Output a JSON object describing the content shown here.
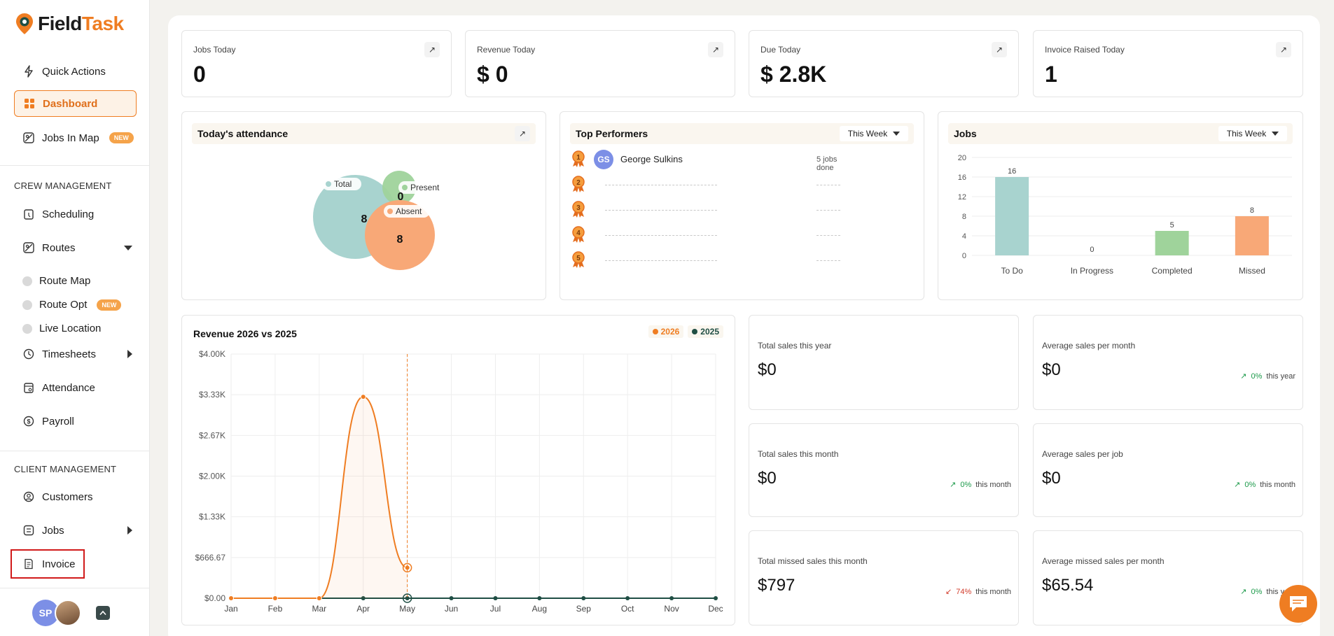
{
  "app": {
    "logo_part1": "Field",
    "logo_part2": "Task",
    "brand_color": "#ef7d22"
  },
  "sidebar": {
    "top_items": [
      {
        "label": "Quick Actions",
        "icon": "bolt-icon"
      },
      {
        "label": "Dashboard",
        "icon": "dashboard-icon",
        "active": true
      },
      {
        "label": "Jobs In Map",
        "icon": "map-icon",
        "badge": "NEW"
      }
    ],
    "crew_title": "CREW MANAGEMENT",
    "crew_items": [
      {
        "label": "Scheduling",
        "icon": "calendar-icon"
      },
      {
        "label": "Routes",
        "icon": "routes-icon",
        "expanded": true
      }
    ],
    "route_sub": [
      {
        "label": "Route Map"
      },
      {
        "label": "Route Opt",
        "badge": "NEW"
      },
      {
        "label": "Live Location"
      }
    ],
    "crew_items2": [
      {
        "label": "Timesheets",
        "icon": "clock-icon"
      },
      {
        "label": "Attendance",
        "icon": "attendance-icon"
      },
      {
        "label": "Payroll",
        "icon": "payroll-icon"
      }
    ],
    "client_title": "CLIENT MANAGEMENT",
    "client_items": [
      {
        "label": "Customers",
        "icon": "customers-icon"
      },
      {
        "label": "Jobs",
        "icon": "jobs-icon"
      },
      {
        "label": "Invoice",
        "icon": "invoice-icon"
      }
    ],
    "user_initials": "SP"
  },
  "stats": [
    {
      "label": "Jobs Today",
      "value": "0"
    },
    {
      "label": "Revenue Today",
      "value": "$ 0"
    },
    {
      "label": "Due Today",
      "value": "$ 2.8K"
    },
    {
      "label": "Invoice Raised Today",
      "value": "1"
    }
  ],
  "attendance": {
    "title": "Today's attendance",
    "total_label": "Total",
    "present_label": "Present",
    "absent_label": "Absent",
    "total_value": "8",
    "present_value": "0",
    "absent_value": "8",
    "colors": {
      "total": "#a8d3cf",
      "present": "#9fd39b",
      "absent": "#f8a877"
    }
  },
  "performers": {
    "title": "Top Performers",
    "filter": "This Week",
    "top": {
      "initials": "GS",
      "name": "George Sulkins",
      "jobs": "5 jobs done"
    },
    "ranks": [
      "1",
      "2",
      "3",
      "4",
      "5"
    ]
  },
  "jobs_chart": {
    "title": "Jobs",
    "filter": "This Week"
  },
  "revenue": {
    "title": "Revenue 2026 vs 2025",
    "legend_2026": "2026",
    "legend_2025": "2025",
    "color_2026": "#ef7d22",
    "color_2025": "#1f4e44"
  },
  "sales": [
    {
      "label": "Total sales this year",
      "value": "$0",
      "pct": "",
      "period": ""
    },
    {
      "label": "Average sales per month",
      "value": "$0",
      "pct": "0%",
      "period": "this year",
      "dir": "up"
    },
    {
      "label": "Total sales this month",
      "value": "$0",
      "pct": "0%",
      "period": "this month",
      "dir": "up"
    },
    {
      "label": "Average sales per job",
      "value": "$0",
      "pct": "0%",
      "period": "this month",
      "dir": "up"
    },
    {
      "label": "Total missed sales this month",
      "value": "$797",
      "pct": "74%",
      "period": "this month",
      "dir": "down"
    },
    {
      "label": "Average missed sales per month",
      "value": "$65.54",
      "pct": "0%",
      "period": "this year",
      "dir": "up"
    }
  ],
  "chart_data": [
    {
      "type": "bar",
      "title": "Jobs",
      "categories": [
        "To Do",
        "In Progress",
        "Completed",
        "Missed"
      ],
      "values": [
        16,
        0,
        5,
        8
      ],
      "colors": [
        "#a8d3cf",
        "#9fd39b",
        "#9fd39b",
        "#f8a877"
      ],
      "ylim": [
        0,
        20
      ],
      "yticks": [
        "0",
        "4",
        "8",
        "12",
        "16",
        "20"
      ]
    },
    {
      "type": "line",
      "title": "Revenue 2026 vs 2025",
      "categories": [
        "Jan",
        "Feb",
        "Mar",
        "Apr",
        "May",
        "Jun",
        "Jul",
        "Aug",
        "Sep",
        "Oct",
        "Nov",
        "Dec"
      ],
      "series": [
        {
          "name": "2026",
          "values": [
            0,
            0,
            0,
            3300,
            500,
            null,
            null,
            null,
            null,
            null,
            null,
            null
          ]
        },
        {
          "name": "2025",
          "values": [
            0,
            0,
            0,
            0,
            0,
            0,
            0,
            0,
            0,
            0,
            0,
            0
          ]
        }
      ],
      "ylim": [
        0,
        4000
      ],
      "yticks": [
        "$0.00",
        "$666.67",
        "$1.33K",
        "$2.00K",
        "$2.67K",
        "$3.33K",
        "$4.00K"
      ],
      "grid": true,
      "legend": "top-right"
    }
  ]
}
